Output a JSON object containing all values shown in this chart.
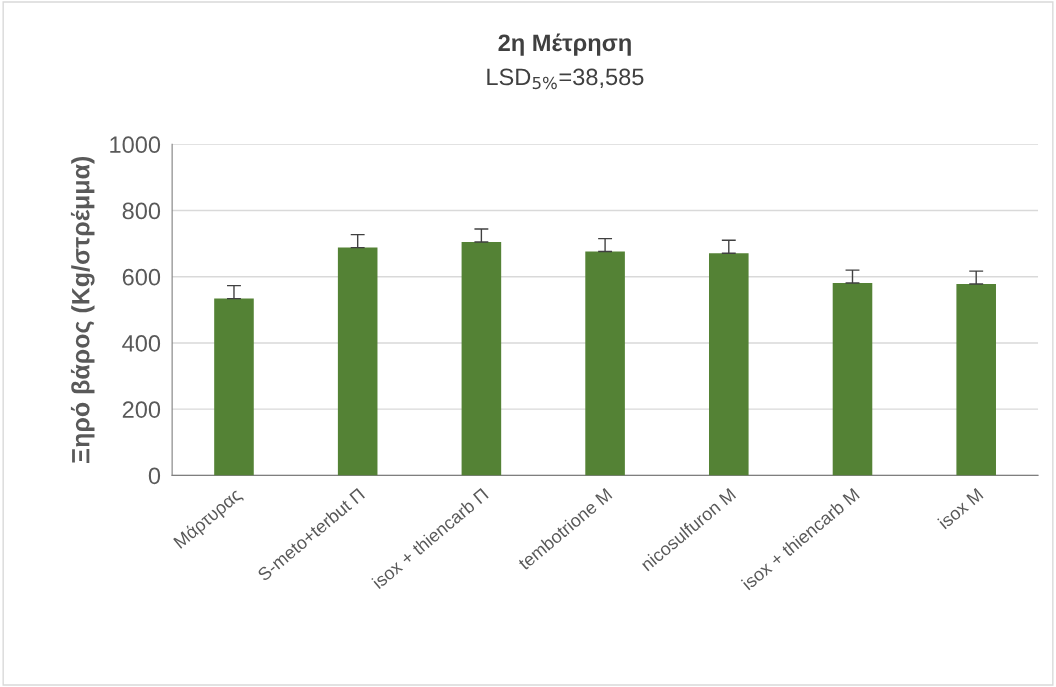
{
  "chart_data": {
    "type": "bar",
    "title": "2η Μέτρηση",
    "subtitle": "LSD$_{5%}$=38,585",
    "ylabel": "Ξηρό βάρος (Kg/στρέμμα)",
    "categories": [
      "Μάρτυρας",
      "S-meto+terbut Π",
      "isox + thiencarb Π",
      "tembotrione Μ",
      "nicosulfuron Μ",
      "isox + thiencarb Μ",
      "isox Μ"
    ],
    "values": [
      534,
      688,
      705,
      676,
      671,
      581,
      578
    ],
    "errors": [
      39,
      39,
      39,
      39,
      39,
      39,
      39
    ],
    "color": "#548235",
    "ylim": [
      0,
      1000
    ],
    "yticks": [
      0,
      200,
      400,
      600,
      800,
      1000
    ],
    "grid": "y",
    "legend": false
  }
}
